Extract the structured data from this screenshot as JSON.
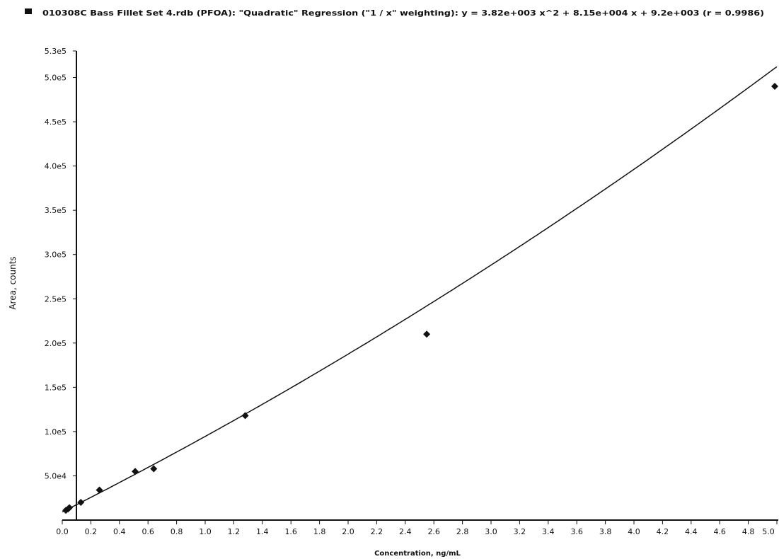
{
  "chart_data": {
    "type": "scatter",
    "title": "010308C Bass Fillet Set 4.rdb (PFOA): \"Quadratic\" Regression (\"1 / x\" weighting): y = 3.82e+003 x^2 + 8.15e+004 x + 9.2e+003 (r = 0.9986)",
    "xlabel": "Concentration, ng/mL",
    "ylabel": "Area, counts",
    "xlim": [
      0,
      5.0
    ],
    "ylim": [
      0,
      530000
    ],
    "x_tick_labels": [
      "0.0",
      "0.2",
      "0.4",
      "0.6",
      "0.8",
      "1.0",
      "1.2",
      "1.4",
      "1.6",
      "1.8",
      "2.0",
      "2.2",
      "2.4",
      "2.6",
      "2.8",
      "3.0",
      "3.2",
      "3.4",
      "3.6",
      "3.8",
      "4.0",
      "4.2",
      "4.4",
      "4.6",
      "4.8",
      "5.0"
    ],
    "y_ticks": [
      {
        "value": 50000,
        "label": "5.0e4"
      },
      {
        "value": 100000,
        "label": "1.0e5"
      },
      {
        "value": 150000,
        "label": "1.5e5"
      },
      {
        "value": 200000,
        "label": "2.0e5"
      },
      {
        "value": 250000,
        "label": "2.5e5"
      },
      {
        "value": 300000,
        "label": "3.0e5"
      },
      {
        "value": 350000,
        "label": "3.5e5"
      },
      {
        "value": 400000,
        "label": "4.0e5"
      },
      {
        "value": 450000,
        "label": "4.5e5"
      },
      {
        "value": 500000,
        "label": "5.0e5"
      },
      {
        "value": 530000,
        "label": "5.3e5"
      }
    ],
    "grid": false,
    "points": [
      {
        "x": 0.025,
        "y": 11000
      },
      {
        "x": 0.04,
        "y": 12500
      },
      {
        "x": 0.05,
        "y": 14000
      },
      {
        "x": 0.13,
        "y": 20000
      },
      {
        "x": 0.26,
        "y": 34000
      },
      {
        "x": 0.51,
        "y": 55000
      },
      {
        "x": 0.64,
        "y": 58000
      },
      {
        "x": 1.28,
        "y": 118000
      },
      {
        "x": 2.55,
        "y": 210000
      },
      {
        "x": 5.0,
        "y": 490000
      }
    ],
    "fit": {
      "a": 3820,
      "b": 81500,
      "c": 9200,
      "x_range": [
        0,
        5.0
      ]
    },
    "marker_color": "#111111",
    "line_color": "#111111"
  }
}
